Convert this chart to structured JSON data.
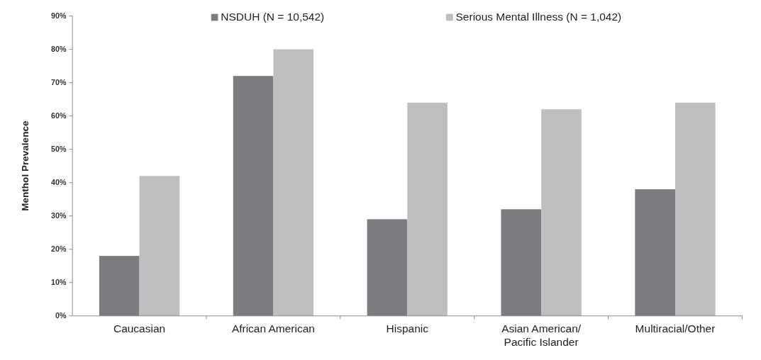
{
  "chart_data": {
    "type": "bar",
    "ylabel": "Menthol Prevalence",
    "categories": [
      "Caucasian",
      "African American",
      "Hispanic",
      "Asian American/Pacific Islander",
      "Multiracial/Other"
    ],
    "series": [
      {
        "name": "NSDUH (N  = 10,542)",
        "color": "#7b7c7f",
        "values": [
          18,
          72,
          29,
          32,
          38
        ]
      },
      {
        "name": "Serious Mental Illness (N = 1,042)",
        "color": "#bdbec0",
        "values": [
          42,
          80,
          64,
          62,
          64
        ]
      }
    ],
    "ylim": [
      0,
      90
    ],
    "yticks": [
      {
        "value": 0,
        "label": "0%"
      },
      {
        "value": 10,
        "label": "10%"
      },
      {
        "value": 20,
        "label": "20%"
      },
      {
        "value": 30,
        "label": "30%"
      },
      {
        "value": 40,
        "label": "40%"
      },
      {
        "value": 50,
        "label": "50%"
      },
      {
        "value": 60,
        "label": "60%"
      },
      {
        "value": 70,
        "label": "70%"
      },
      {
        "value": 80,
        "label": "80%"
      },
      {
        "value": 90,
        "label": "90%"
      }
    ],
    "grid": false,
    "legend": "top"
  }
}
